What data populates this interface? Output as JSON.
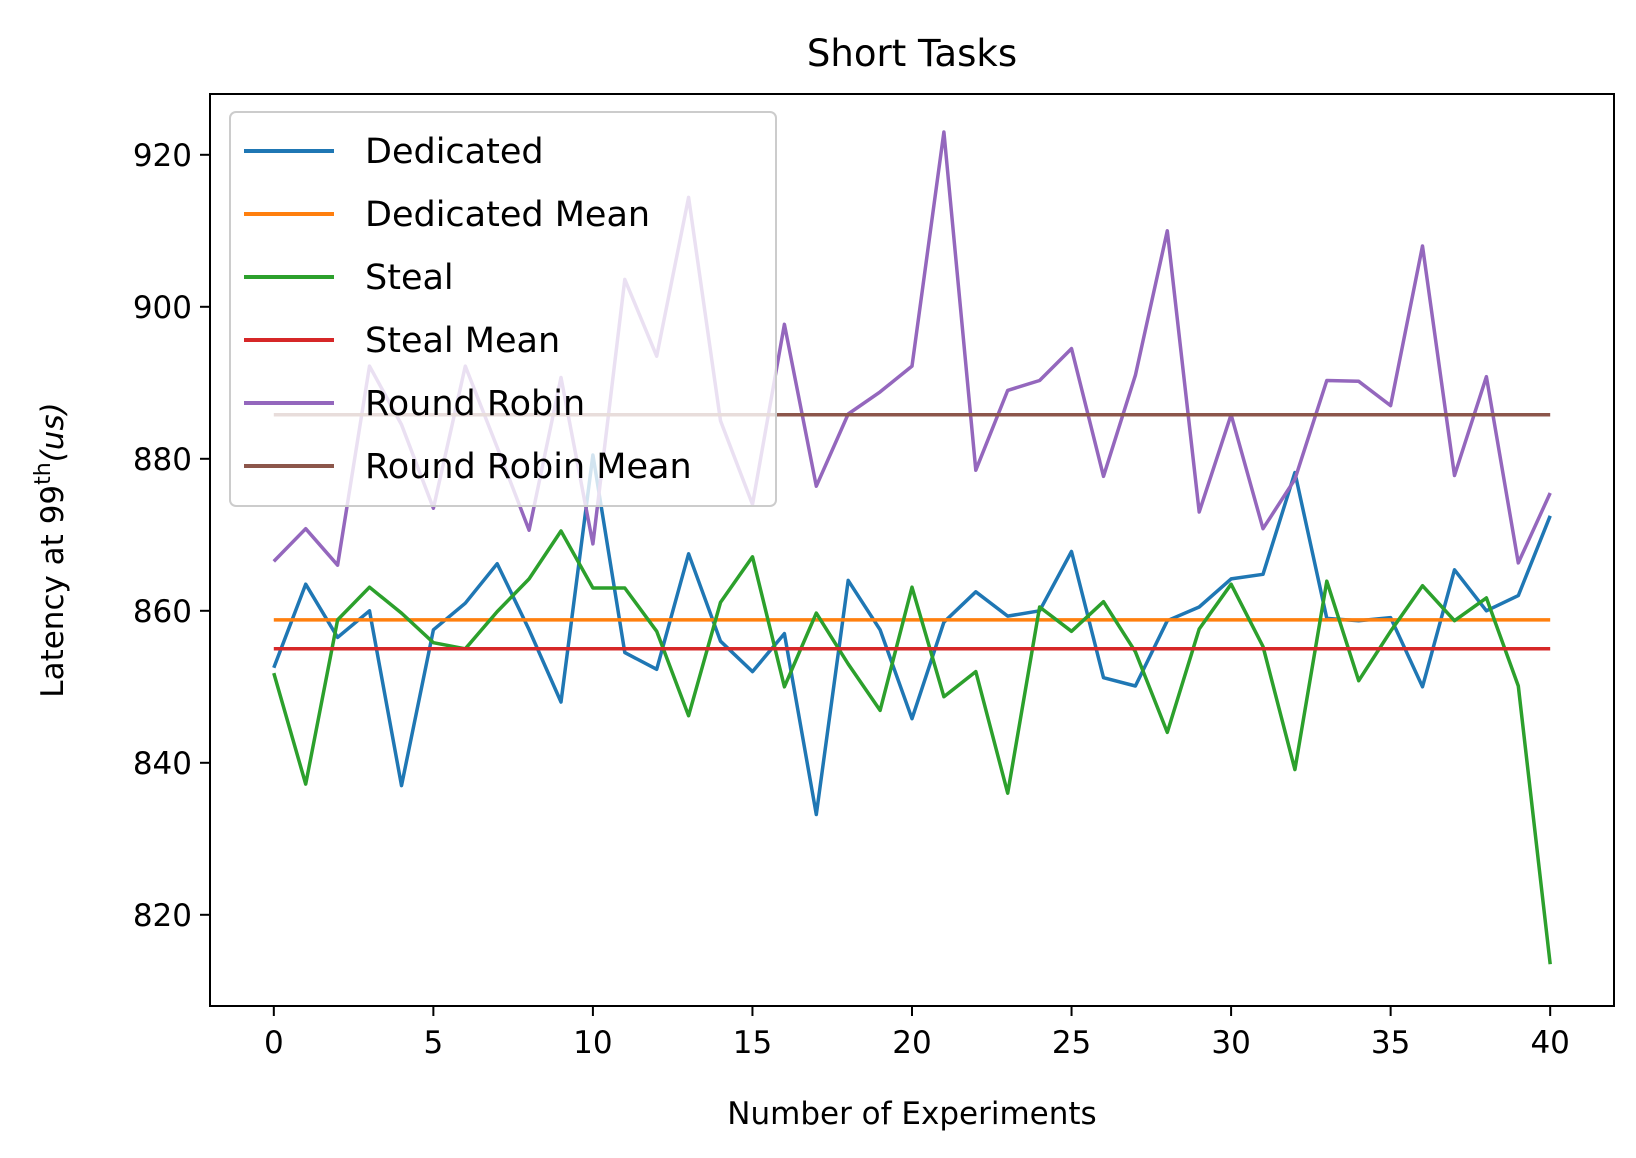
{
  "chart_data": {
    "type": "line",
    "title": "Short Tasks",
    "xlabel": "Number of Experiments",
    "ylabel": {
      "prefix": "Latency at 99",
      "superscript": "th",
      "suffix": "(us)"
    },
    "xlim": [
      -2,
      42
    ],
    "ylim": [
      808,
      928
    ],
    "xticks": [
      0,
      5,
      10,
      15,
      20,
      25,
      30,
      35,
      40
    ],
    "yticks": [
      820,
      840,
      860,
      880,
      900,
      920
    ],
    "grid": false,
    "legend_position": "upper-left",
    "x": [
      0,
      1,
      2,
      3,
      4,
      5,
      6,
      7,
      8,
      9,
      10,
      11,
      12,
      13,
      14,
      15,
      16,
      17,
      18,
      19,
      20,
      21,
      22,
      23,
      24,
      25,
      26,
      27,
      28,
      29,
      30,
      31,
      32,
      33,
      34,
      35,
      36,
      37,
      38,
      39,
      40
    ],
    "series": [
      {
        "name": "Dedicated",
        "color": "#1f77b4",
        "values": [
          852.5,
          863.5,
          856.5,
          860,
          837,
          857.5,
          861,
          866.2,
          857.5,
          848,
          880.5,
          854.5,
          852.3,
          867.5,
          856,
          852,
          857,
          833.2,
          864,
          857.5,
          845.8,
          858.5,
          862.5,
          859.3,
          860,
          867.8,
          851.2,
          850.1,
          858.7,
          860.5,
          864.2,
          864.8,
          878.2,
          859,
          858.7,
          859.1,
          850,
          865.4,
          860,
          862,
          872.5
        ]
      },
      {
        "name": "Dedicated Mean",
        "color": "#ff7f0e",
        "values": [
          858.8,
          858.8,
          858.8,
          858.8,
          858.8,
          858.8,
          858.8,
          858.8,
          858.8,
          858.8,
          858.8,
          858.8,
          858.8,
          858.8,
          858.8,
          858.8,
          858.8,
          858.8,
          858.8,
          858.8,
          858.8,
          858.8,
          858.8,
          858.8,
          858.8,
          858.8,
          858.8,
          858.8,
          858.8,
          858.8,
          858.8,
          858.8,
          858.8,
          858.8,
          858.8,
          858.8,
          858.8,
          858.8,
          858.8,
          858.8,
          858.8
        ]
      },
      {
        "name": "Steal",
        "color": "#2ca02c",
        "values": [
          851.8,
          837.2,
          858.8,
          863.1,
          859.7,
          855.8,
          855,
          859.9,
          864.2,
          870.5,
          863,
          863,
          857.3,
          846.2,
          861.1,
          867.1,
          850,
          859.7,
          853,
          846.9,
          863.1,
          848.7,
          852,
          836,
          860.5,
          857.3,
          861.2,
          854.6,
          844,
          857.6,
          863.5,
          855.3,
          839.1,
          863.9,
          850.8,
          857.3,
          863.3,
          858.7,
          861.7,
          850.1,
          813.5
        ]
      },
      {
        "name": "Steal Mean",
        "color": "#d62728",
        "values": [
          855,
          855,
          855,
          855,
          855,
          855,
          855,
          855,
          855,
          855,
          855,
          855,
          855,
          855,
          855,
          855,
          855,
          855,
          855,
          855,
          855,
          855,
          855,
          855,
          855,
          855,
          855,
          855,
          855,
          855,
          855,
          855,
          855,
          855,
          855,
          855,
          855,
          855,
          855,
          855,
          855
        ]
      },
      {
        "name": "Round Robin",
        "color": "#9467bd",
        "values": [
          866.5,
          870.8,
          866,
          892.2,
          884.5,
          873.5,
          892.2,
          881.5,
          870.6,
          890.7,
          868.8,
          903.6,
          893.5,
          914.4,
          885,
          874,
          897.7,
          876.4,
          885.9,
          888.8,
          892.2,
          923,
          878.5,
          889,
          890.3,
          894.5,
          877.7,
          891,
          910,
          873,
          885.8,
          870.8,
          877.3,
          890.3,
          890.2,
          887,
          908,
          877.8,
          890.8,
          866.3,
          875.5
        ]
      },
      {
        "name": "Round Robin Mean",
        "color": "#8c564b",
        "values": [
          885.8,
          885.8,
          885.8,
          885.8,
          885.8,
          885.8,
          885.8,
          885.8,
          885.8,
          885.8,
          885.8,
          885.8,
          885.8,
          885.8,
          885.8,
          885.8,
          885.8,
          885.8,
          885.8,
          885.8,
          885.8,
          885.8,
          885.8,
          885.8,
          885.8,
          885.8,
          885.8,
          885.8,
          885.8,
          885.8,
          885.8,
          885.8,
          885.8,
          885.8,
          885.8,
          885.8,
          885.8,
          885.8,
          885.8,
          885.8,
          885.8
        ]
      }
    ]
  }
}
